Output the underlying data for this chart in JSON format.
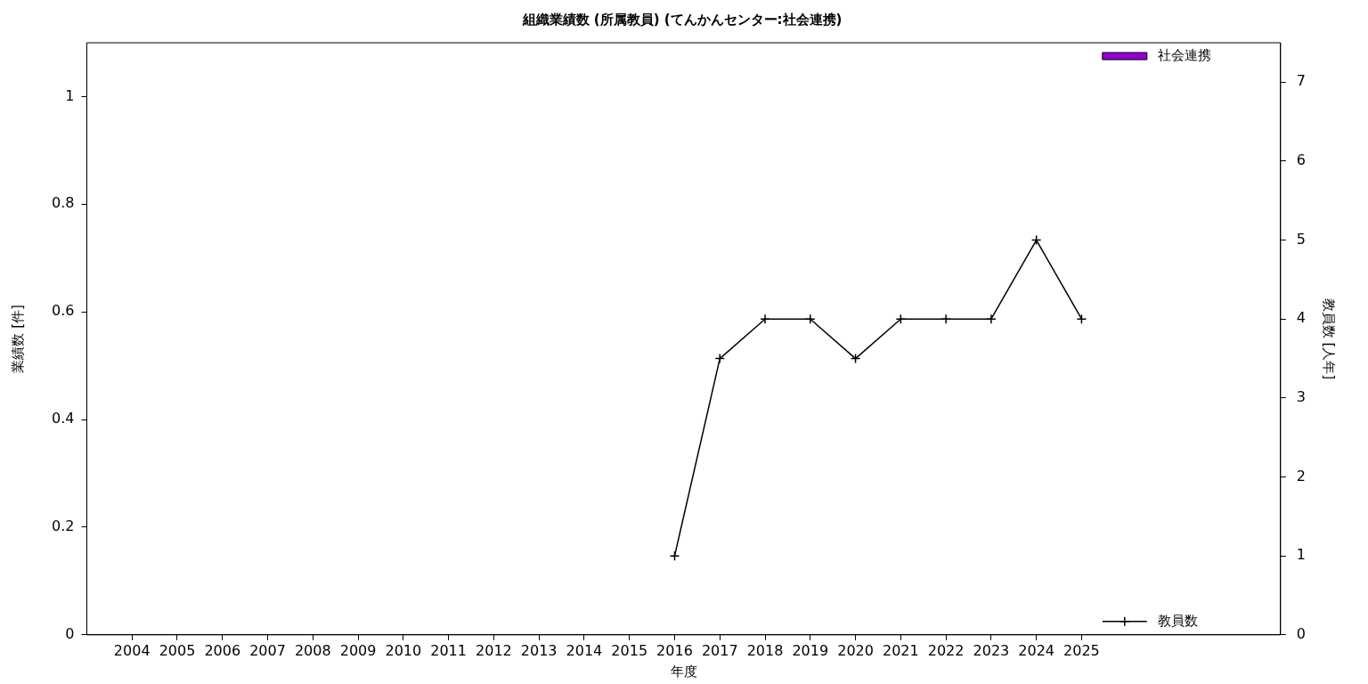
{
  "chart_data": {
    "type": "bar",
    "title": "組織業績数 (所属教員) (てんかんセンター:社会連携)",
    "xlabel": "年度",
    "ylabel": "業績数 [件]",
    "y2label": "教員数 [人年]",
    "x": [
      2004,
      2005,
      2006,
      2007,
      2008,
      2009,
      2010,
      2011,
      2012,
      2013,
      2014,
      2015,
      2016,
      2017,
      2018,
      2019,
      2020,
      2021,
      2022,
      2023,
      2024,
      2025
    ],
    "xlim": [
      2003,
      2029.4
    ],
    "xticks": [
      2004,
      2005,
      2006,
      2007,
      2008,
      2009,
      2010,
      2011,
      2012,
      2013,
      2014,
      2015,
      2016,
      2017,
      2018,
      2019,
      2020,
      2021,
      2022,
      2023,
      2024,
      2025
    ],
    "ylim": [
      0,
      1.1
    ],
    "yticks": [
      0,
      0.2,
      0.4,
      0.6,
      0.8,
      1
    ],
    "y2lim": [
      0,
      7.5
    ],
    "y2ticks": [
      0,
      1,
      2,
      3,
      4,
      5,
      6,
      7
    ],
    "series": [
      {
        "name": "社会連携",
        "color": "#9400d3",
        "values": [
          0,
          0,
          0,
          0,
          0,
          0,
          0,
          0,
          0,
          0,
          0,
          0,
          0,
          0,
          0,
          0,
          0,
          0,
          0,
          0,
          0,
          0
        ]
      },
      {
        "name": "教員数",
        "type": "line",
        "axis": "y2",
        "color": "#000000",
        "marker": "cross",
        "values": [
          null,
          null,
          null,
          null,
          null,
          null,
          null,
          null,
          null,
          null,
          null,
          null,
          1,
          3.5,
          4,
          4,
          3.5,
          4,
          4,
          4,
          5,
          4
        ]
      }
    ],
    "legend": "right",
    "grid": false
  }
}
